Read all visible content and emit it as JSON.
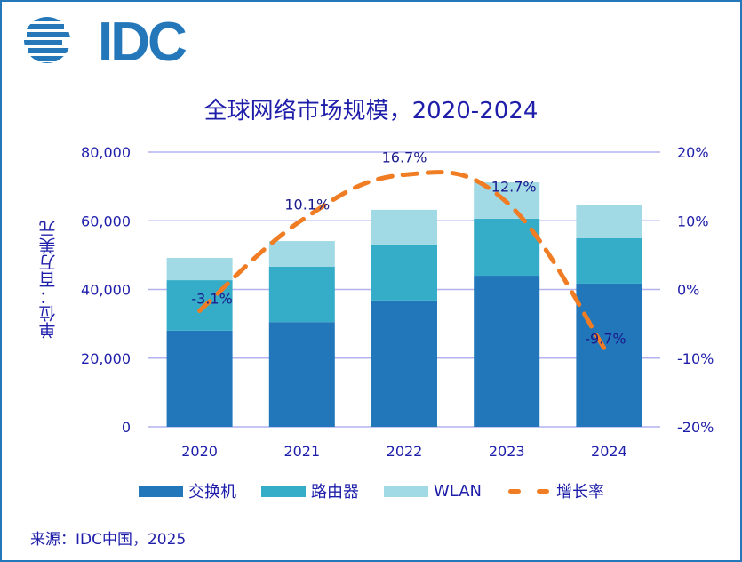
{
  "logo": {
    "text": "IDC",
    "icon": "idc-globe-logo-icon"
  },
  "colors": {
    "frame": "#2478ba",
    "text": "#1e1eaa",
    "gridline": "#b3b3f0",
    "switch": "#2277bb",
    "router": "#35adc8",
    "wlan": "#a1d9e4",
    "growth": "#f07c24"
  },
  "chart_data": {
    "type": "bar",
    "stacked": true,
    "title": "全球网络市场规模，2020-2024",
    "ylabel": "单位：百万美元",
    "ylabel_right": "",
    "xlabel": "",
    "categories": [
      "2020",
      "2021",
      "2022",
      "2023",
      "2024"
    ],
    "ylim": [
      0,
      80000
    ],
    "yticks": [
      0,
      20000,
      40000,
      60000,
      80000
    ],
    "ytick_labels": [
      "0",
      "20,000",
      "40,000",
      "60,000",
      "80,000"
    ],
    "y2lim": [
      -20,
      20
    ],
    "y2ticks": [
      -20,
      -10,
      0,
      10,
      20
    ],
    "y2tick_labels": [
      "-20%",
      "-10%",
      "0%",
      "10%",
      "20%"
    ],
    "grid": true,
    "series": [
      {
        "name": "交换机",
        "type": "bar",
        "axis": "left",
        "values": [
          28000,
          30500,
          36800,
          44000,
          41700
        ]
      },
      {
        "name": "路由器",
        "type": "bar",
        "axis": "left",
        "values": [
          14700,
          16100,
          16300,
          16600,
          13200
        ]
      },
      {
        "name": "WLAN",
        "type": "bar",
        "axis": "left",
        "values": [
          6500,
          7500,
          10100,
          10600,
          9600
        ]
      },
      {
        "name": "增长率",
        "type": "line",
        "style": "dashed-smooth",
        "axis": "right",
        "values": [
          -3.1,
          10.1,
          16.7,
          12.7,
          -9.7
        ],
        "labels": [
          "-3.1%",
          "10.1%",
          "16.7%",
          "12.7%",
          "-9.7%"
        ]
      }
    ],
    "legend_position": "bottom"
  },
  "source": "来源：IDC中国，2025"
}
